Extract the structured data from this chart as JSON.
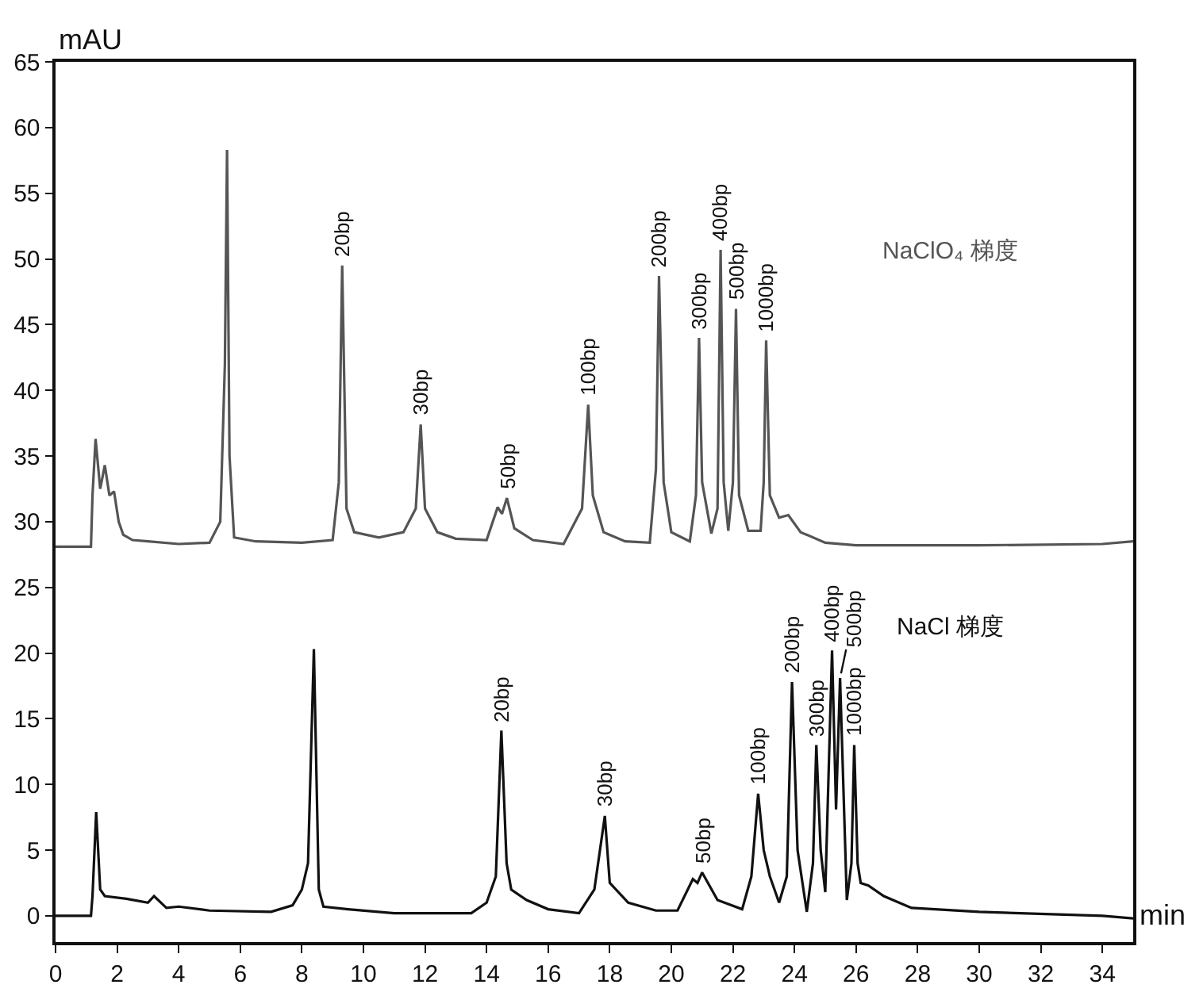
{
  "chart_data": {
    "type": "line",
    "xlabel": "min",
    "ylabel": "mAU",
    "xlim": [
      0,
      35
    ],
    "xticks": [
      0,
      2,
      4,
      6,
      8,
      10,
      12,
      14,
      16,
      18,
      20,
      22,
      24,
      26,
      28,
      30,
      32,
      34
    ],
    "ylim": [
      -2,
      65
    ],
    "yticks": [
      0,
      5,
      10,
      15,
      20,
      25,
      30,
      35,
      40,
      45,
      50,
      55,
      60,
      65
    ],
    "grid": false,
    "legend": false,
    "marker": "none",
    "line_style": "solid",
    "series": [
      {
        "name": "NaClO₄ 梯度",
        "color": "#555555",
        "x": [
          0,
          1.15,
          1.2,
          1.3,
          1.45,
          1.6,
          1.75,
          1.9,
          2.05,
          2.2,
          2.5,
          3,
          4,
          5,
          5.35,
          5.5,
          5.57,
          5.65,
          5.8,
          6.5,
          8,
          9.0,
          9.2,
          9.31,
          9.45,
          9.7,
          10.5,
          11.3,
          11.7,
          11.86,
          12.0,
          12.4,
          13.0,
          14.0,
          14.36,
          14.5,
          14.66,
          14.9,
          15.5,
          16.5,
          17.1,
          17.3,
          17.45,
          17.8,
          18.5,
          19.3,
          19.5,
          19.6,
          19.75,
          20.0,
          20.6,
          20.8,
          20.9,
          21.0,
          21.3,
          21.5,
          21.6,
          21.7,
          21.85,
          22.0,
          22.1,
          22.2,
          22.5,
          22.9,
          23.0,
          23.08,
          23.2,
          23.5,
          23.8,
          24.2,
          25,
          26,
          30,
          34,
          35
        ],
        "values": [
          28.1,
          28.1,
          32,
          36.3,
          32.5,
          34.3,
          32,
          32.3,
          30,
          29,
          28.6,
          28.5,
          28.3,
          28.4,
          30,
          42,
          58.3,
          35,
          28.8,
          28.5,
          28.4,
          28.6,
          33,
          49.5,
          31,
          29.2,
          28.8,
          29.2,
          31,
          37.4,
          31,
          29.2,
          28.7,
          28.6,
          31.1,
          30.6,
          31.8,
          29.5,
          28.6,
          28.3,
          31,
          38.9,
          32,
          29.2,
          28.5,
          28.4,
          34,
          48.7,
          33,
          29.2,
          28.5,
          32,
          44.0,
          33,
          29.1,
          31,
          50.7,
          33,
          29.3,
          33,
          46.2,
          32,
          29.3,
          29.3,
          33,
          43.8,
          32,
          30.3,
          30.5,
          29.2,
          28.4,
          28.2,
          28.2,
          28.3,
          28.5
        ]
      },
      {
        "name": "NaCl 梯度",
        "color": "#111111",
        "x": [
          0,
          1.15,
          1.2,
          1.32,
          1.45,
          1.6,
          2.3,
          3.0,
          3.2,
          3.6,
          4,
          5,
          7,
          7.7,
          8.0,
          8.2,
          8.39,
          8.55,
          8.7,
          9.5,
          11,
          13.5,
          14.0,
          14.3,
          14.48,
          14.65,
          14.8,
          15.3,
          16,
          17,
          17.5,
          17.84,
          18.0,
          18.6,
          19.5,
          20.2,
          20.7,
          20.85,
          21.0,
          21.5,
          22.3,
          22.6,
          22.82,
          23.0,
          23.2,
          23.5,
          23.75,
          23.92,
          24.1,
          24.4,
          24.6,
          24.71,
          24.85,
          25.0,
          25.22,
          25.35,
          25.48,
          25.7,
          25.85,
          25.94,
          26.05,
          26.15,
          26.4,
          26.9,
          27.8,
          30,
          34,
          35
        ],
        "values": [
          0,
          0,
          1.5,
          7.9,
          2,
          1.5,
          1.3,
          1.0,
          1.5,
          0.6,
          0.7,
          0.4,
          0.3,
          0.8,
          2,
          4,
          20.3,
          2,
          0.7,
          0.5,
          0.2,
          0.2,
          1,
          3,
          14.1,
          4,
          2,
          1.2,
          0.5,
          0.2,
          2,
          7.6,
          2.5,
          1,
          0.4,
          0.4,
          2.8,
          2.5,
          3.3,
          1.2,
          0.5,
          3,
          9.3,
          5,
          3,
          1.0,
          3,
          17.8,
          5,
          0.3,
          4,
          13.0,
          5,
          1.8,
          20.2,
          8.1,
          18.1,
          1.2,
          4,
          13.0,
          4,
          2.5,
          2.3,
          1.5,
          0.6,
          0.3,
          0.0,
          -0.2
        ]
      }
    ],
    "annotations": [
      {
        "text": "20bp",
        "x": 9.31,
        "y": 49.5
      },
      {
        "text": "30bp",
        "x": 11.86,
        "y": 37.4
      },
      {
        "text": "50bp",
        "x": 14.66,
        "y": 31.8
      },
      {
        "text": "100bp",
        "x": 17.3,
        "y": 38.9
      },
      {
        "text": "200bp",
        "x": 19.6,
        "y": 48.7
      },
      {
        "text": "300bp",
        "x": 20.9,
        "y": 44.0
      },
      {
        "text": "400bp",
        "x": 21.6,
        "y": 50.7
      },
      {
        "text": "500bp",
        "x": 22.1,
        "y": 46.2
      },
      {
        "text": "1000bp",
        "x": 23.08,
        "y": 43.8
      },
      {
        "text": "20bp",
        "x": 14.48,
        "y": 14.1
      },
      {
        "text": "30bp",
        "x": 17.84,
        "y": 7.6
      },
      {
        "text": "50bp",
        "x": 21.0,
        "y": 3.3
      },
      {
        "text": "100bp",
        "x": 22.82,
        "y": 9.3
      },
      {
        "text": "200bp",
        "x": 23.92,
        "y": 17.8
      },
      {
        "text": "300bp",
        "x": 24.71,
        "y": 13.0
      },
      {
        "text": "400bp",
        "x": 25.22,
        "y": 20.2
      },
      {
        "text": "500bp",
        "x": 25.48,
        "y": 18.1
      },
      {
        "text": "1000bp",
        "x": 25.94,
        "y": 13.0
      }
    ]
  }
}
